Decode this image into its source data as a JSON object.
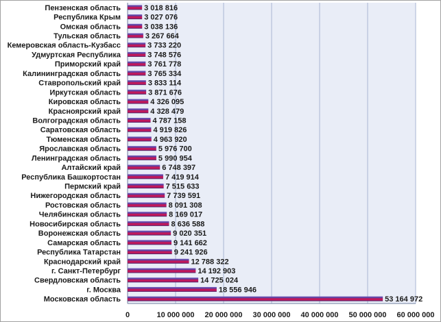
{
  "chart_data": {
    "type": "bar",
    "orientation": "horizontal",
    "title": "",
    "xlabel": "",
    "ylabel": "",
    "xlim": [
      0,
      60000000
    ],
    "x_ticks": [
      "0",
      "10 000 000",
      "20 000 000",
      "30 000 000",
      "40 000 000",
      "50 000 000",
      "60 000 000"
    ],
    "grid": true,
    "legend": "none",
    "colors": {
      "plot_background": "#e9edf7",
      "grid": "#a9b5d3",
      "bar_top": "#6a4fa8",
      "bar_main": "#c2185b",
      "bar_dark": "#3a2a70",
      "border": "#a0a0a0"
    },
    "categories": [
      "Пензенская область",
      "Республика Крым",
      "Омская область",
      "Тульская область",
      "Кемеровская область-Кузбасс",
      "Удмуртская Республика",
      "Приморский край",
      "Калининградская область",
      "Ставропольский край",
      "Иркутская область",
      "Кировская область",
      "Красноярский край",
      "Волгоградская область",
      "Саратовская область",
      "Тюменская область",
      "Ярославская область",
      "Ленинградская область",
      "Алтайский край",
      "Республика Башкортостан",
      "Пермский край",
      "Нижегородская область",
      "Ростовская область",
      "Челябинская область",
      "Новосибирская область",
      "Воронежская область",
      "Самарская область",
      "Республика Татарстан",
      "Краснодарский край",
      "г. Санкт-Петербург",
      "Свердловская область",
      "г. Москва",
      "Московская область"
    ],
    "values": [
      3018816,
      3027076,
      3038136,
      3267664,
      3733220,
      3748576,
      3761778,
      3765334,
      3833114,
      3871676,
      4326095,
      4328479,
      4787158,
      4919826,
      4963920,
      5976700,
      5990954,
      6748397,
      7419914,
      7515633,
      7739591,
      8091308,
      8169017,
      8636588,
      9020351,
      9141662,
      9241926,
      12788322,
      14192903,
      14725024,
      18556946,
      53164972
    ],
    "value_labels": [
      "3 018 816",
      "3 027 076",
      "3 038 136",
      "3 267 664",
      "3 733 220",
      "3 748 576",
      "3 761 778",
      "3 765 334",
      "3 833 114",
      "3 871 676",
      "4 326 095",
      "4 328 479",
      "4 787 158",
      "4 919 826",
      "4 963 920",
      "5 976 700",
      "5 990 954",
      "6 748 397",
      "7 419 914",
      "7 515 633",
      "7 739 591",
      "8 091 308",
      "8 169 017",
      "8 636 588",
      "9 020 351",
      "9 141 662",
      "9 241 926",
      "12 788 322",
      "14 192 903",
      "14 725 024",
      "18 556 946",
      "53 164 972"
    ]
  }
}
